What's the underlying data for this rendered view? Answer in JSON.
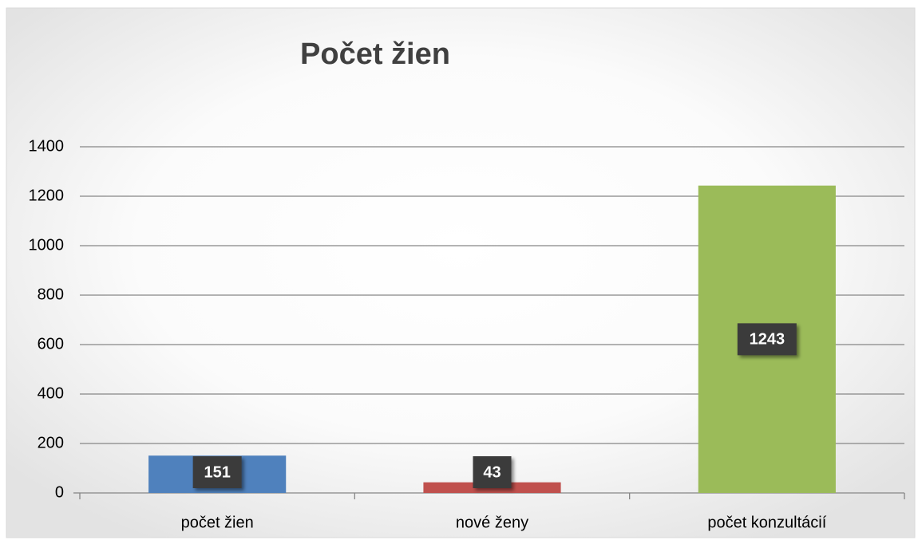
{
  "chart_data": {
    "type": "bar",
    "title": "Počet žien",
    "categories": [
      "počet žien",
      "nové ženy",
      "počet konzultácií"
    ],
    "values": [
      151,
      43,
      1243
    ],
    "colors": [
      "#4f81bd",
      "#c0504d",
      "#9bbb59"
    ],
    "ylim": [
      0,
      1400
    ],
    "yticks": [
      0,
      200,
      400,
      600,
      800,
      1000,
      1200,
      1400
    ],
    "grid": true
  }
}
